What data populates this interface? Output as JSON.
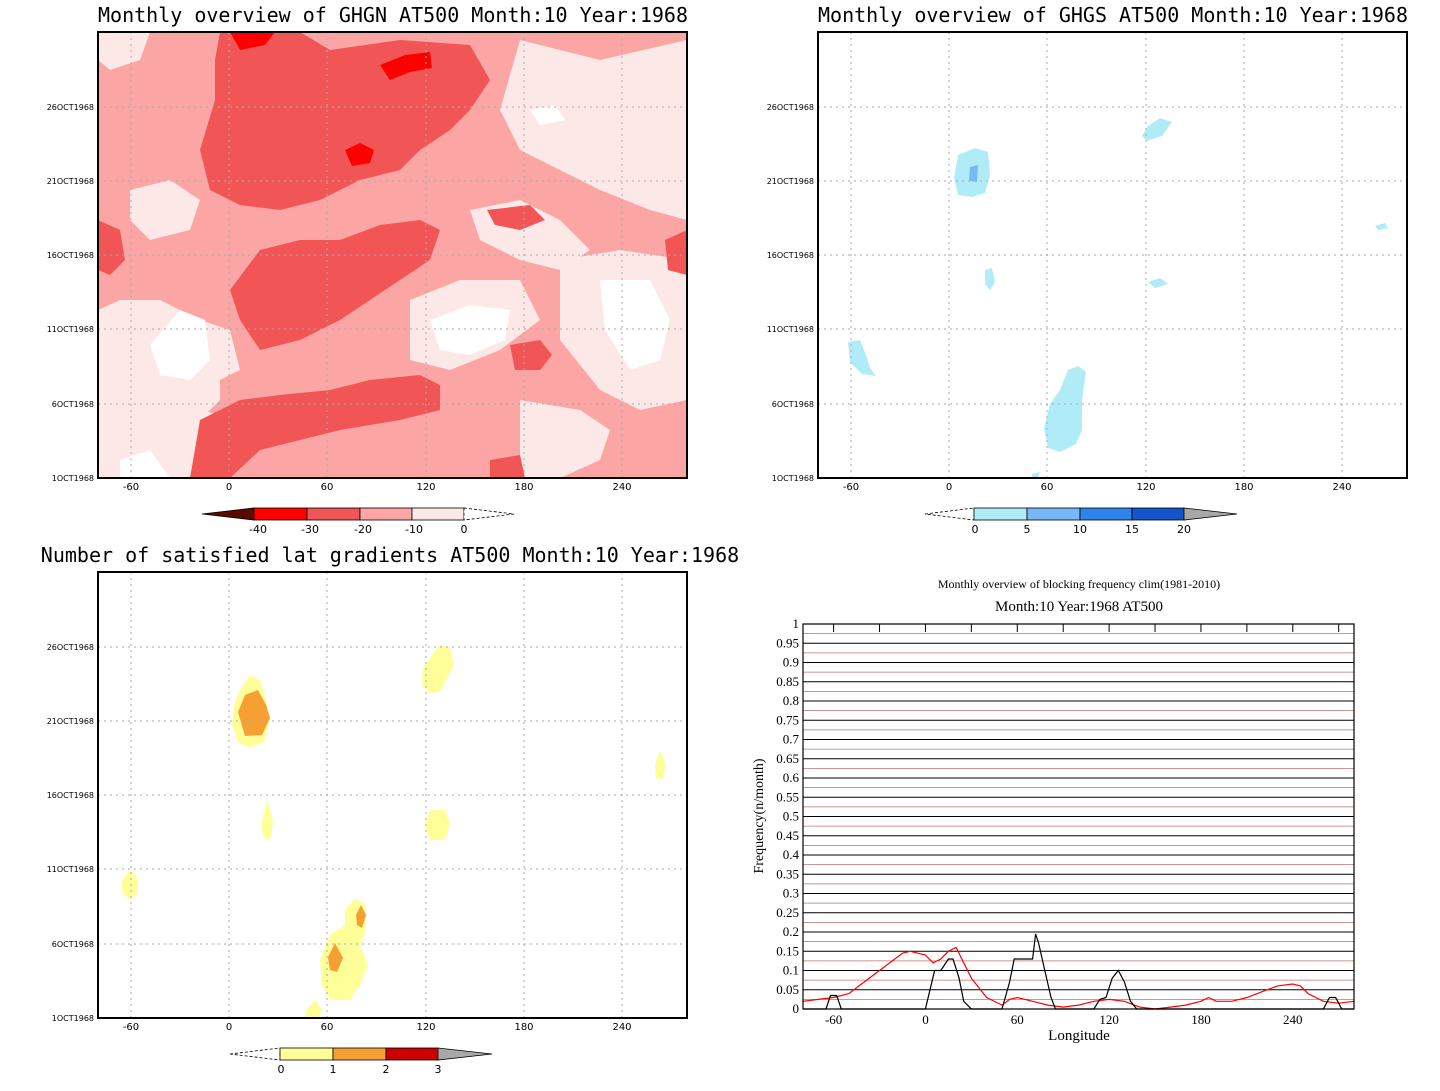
{
  "chart_data": [
    {
      "type": "heatmap",
      "title": "Monthly overview of GHGN AT500 Month:10 Year:1968",
      "x_ticks": [
        "-60",
        "0",
        "60",
        "120",
        "180",
        "240"
      ],
      "y_ticks": [
        "1OCT1968",
        "6OCT1968",
        "11OCT1968",
        "16OCT1968",
        "21OCT1968",
        "26OCT1968"
      ],
      "colorbar": {
        "ticks": [
          "-40",
          "-30",
          "-20",
          "-10",
          "0"
        ],
        "colors": [
          "#5a0a00",
          "#ff0000",
          "#f25555",
          "#fca5a5",
          "#fde8e8"
        ]
      }
    },
    {
      "type": "heatmap",
      "title": "Monthly overview of GHGS AT500 Month:10 Year:1968",
      "x_ticks": [
        "-60",
        "0",
        "60",
        "120",
        "180",
        "240"
      ],
      "y_ticks": [
        "1OCT1968",
        "6OCT1968",
        "11OCT1968",
        "16OCT1968",
        "21OCT1968",
        "26OCT1968"
      ],
      "colorbar": {
        "ticks": [
          "0",
          "5",
          "10",
          "15",
          "20"
        ],
        "colors": [
          "#b0ecf8",
          "#78b9f5",
          "#2e84e8",
          "#1555cc",
          "#a8a8a8"
        ]
      }
    },
    {
      "type": "heatmap",
      "title": "Number of satisfied lat gradients AT500 Month:10 Year:1968",
      "x_ticks": [
        "-60",
        "0",
        "60",
        "120",
        "180",
        "240"
      ],
      "y_ticks": [
        "1OCT1968",
        "6OCT1968",
        "11OCT1968",
        "16OCT1968",
        "21OCT1968",
        "26OCT1968"
      ],
      "colorbar": {
        "ticks": [
          "0",
          "1",
          "2",
          "3"
        ],
        "colors": [
          "#ffff99",
          "#f6a033",
          "#cc0000",
          "#a8a8a8"
        ]
      }
    },
    {
      "type": "line",
      "title": "Monthly overview of blocking frequency clim(1981-2010)",
      "subtitle": "Month:10 Year:1968  AT500",
      "xlabel": "Longitude",
      "ylabel": "Frequency(n/month)",
      "xlim": [
        -80,
        280
      ],
      "ylim": [
        0,
        1
      ],
      "x_ticks": [
        "-60",
        "0",
        "60",
        "120",
        "180",
        "240"
      ],
      "y_ticks": [
        "0",
        "0.05",
        "0.1",
        "0.15",
        "0.2",
        "0.25",
        "0.3",
        "0.35",
        "0.4",
        "0.45",
        "0.5",
        "0.55",
        "0.6",
        "0.65",
        "0.7",
        "0.75",
        "0.8",
        "0.85",
        "0.9",
        "0.95",
        "1"
      ],
      "series": [
        {
          "color": "#ff0000",
          "x": [
            -80,
            -70,
            -60,
            -50,
            -40,
            -30,
            -20,
            -15,
            -10,
            -5,
            0,
            5,
            10,
            15,
            20,
            25,
            30,
            40,
            50,
            55,
            60,
            70,
            80,
            90,
            100,
            110,
            120,
            130,
            140,
            150,
            160,
            170,
            180,
            185,
            190,
            200,
            210,
            220,
            230,
            240,
            245,
            250,
            260,
            270,
            280
          ],
          "y": [
            0.02,
            0.025,
            0.03,
            0.04,
            0.07,
            0.1,
            0.13,
            0.145,
            0.15,
            0.145,
            0.14,
            0.12,
            0.13,
            0.15,
            0.16,
            0.12,
            0.08,
            0.03,
            0.01,
            0.025,
            0.03,
            0.02,
            0.01,
            0.005,
            0.01,
            0.02,
            0.025,
            0.02,
            0.005,
            0.0,
            0.005,
            0.01,
            0.02,
            0.03,
            0.02,
            0.02,
            0.03,
            0.045,
            0.06,
            0.065,
            0.06,
            0.04,
            0.02,
            0.015,
            0.02
          ]
        },
        {
          "color": "#000000",
          "x": [
            -80,
            -65,
            -62,
            -58,
            -55,
            -50,
            -30,
            0,
            3,
            6,
            10,
            15,
            18,
            22,
            25,
            30,
            40,
            50,
            55,
            58,
            62,
            66,
            70,
            72,
            74,
            78,
            82,
            85,
            90,
            100,
            110,
            114,
            118,
            122,
            126,
            130,
            134,
            138,
            145,
            160,
            200,
            260,
            264,
            268,
            272,
            280
          ],
          "y": [
            0,
            0,
            0.035,
            0.035,
            0,
            0,
            0,
            0,
            0.05,
            0.1,
            0.1,
            0.13,
            0.13,
            0.08,
            0.02,
            0,
            0,
            0,
            0.07,
            0.13,
            0.13,
            0.13,
            0.13,
            0.195,
            0.17,
            0.1,
            0.03,
            0,
            0,
            0,
            0,
            0.025,
            0.03,
            0.08,
            0.1,
            0.07,
            0.02,
            0,
            0,
            0,
            0,
            0,
            0.03,
            0.03,
            0,
            0
          ]
        }
      ]
    }
  ]
}
